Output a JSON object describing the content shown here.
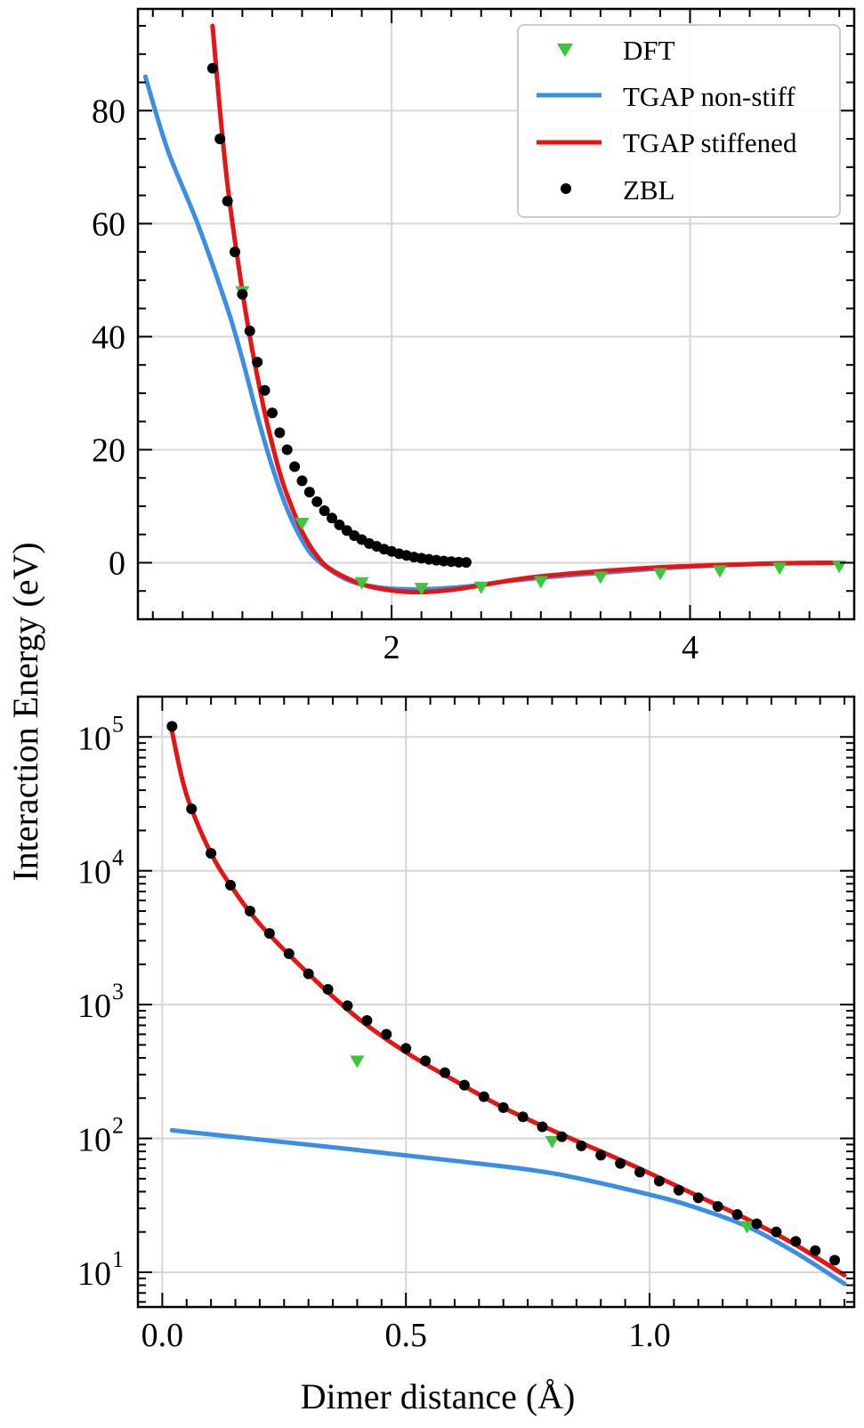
{
  "figure": {
    "ylabel": "Interaction Energy (eV)",
    "xlabel": "Dimer distance (Å)"
  },
  "colors": {
    "dft": "#3cc63c",
    "tgap_non_stiff": "#3b8ee6",
    "tgap_stiffened": "#e81414",
    "zbl": "#000000",
    "grid": "#d6d6d6"
  },
  "legend": {
    "placement": "top-right of top panel",
    "entries": [
      "DFT",
      "TGAP non-stiff",
      "TGAP stiffened",
      "ZBL"
    ]
  },
  "chart_data": [
    {
      "type": "line",
      "panel": "top",
      "xlim": [
        0.3,
        5.1
      ],
      "ylim": [
        -10,
        98
      ],
      "yscale": "linear",
      "grid": true,
      "x_ticks": [
        2,
        4
      ],
      "x_tick_labels": [
        "2",
        "4"
      ],
      "y_ticks": [
        0,
        20,
        40,
        60,
        80
      ],
      "y_tick_labels": [
        "0",
        "20",
        "40",
        "60",
        "80"
      ],
      "series": [
        {
          "name": "DFT",
          "style": "triangle-down-markers",
          "x": [
            1.0,
            1.4,
            1.8,
            2.2,
            2.6,
            3.0,
            3.4,
            3.8,
            4.2,
            4.6,
            5.0
          ],
          "y": [
            48,
            7,
            -3.5,
            -4.5,
            -4.3,
            -3.3,
            -2.5,
            -1.9,
            -1.4,
            -0.9,
            -0.6
          ]
        },
        {
          "name": "TGAP non-stiff",
          "style": "line",
          "x": [
            0.35,
            0.5,
            0.7,
            0.9,
            1.0,
            1.1,
            1.2,
            1.3,
            1.4,
            1.5,
            1.7,
            1.9,
            2.1,
            2.3,
            2.5,
            2.8,
            3.2,
            3.6,
            4.0,
            4.5,
            5.0
          ],
          "y": [
            86,
            73,
            60,
            45,
            36,
            26,
            17,
            9.5,
            4,
            0.5,
            -3,
            -4.3,
            -4.7,
            -4.6,
            -4.2,
            -3.2,
            -2.2,
            -1.4,
            -0.7,
            -0.2,
            0
          ]
        },
        {
          "name": "TGAP stiffened",
          "style": "line",
          "x": [
            0.8,
            0.85,
            0.9,
            0.95,
            1.0,
            1.05,
            1.1,
            1.15,
            1.2,
            1.25,
            1.3,
            1.4,
            1.5,
            1.6,
            1.8,
            2.0,
            2.2,
            2.4,
            2.6,
            2.8,
            3.0,
            3.4,
            3.8,
            4.2,
            4.6,
            5.0
          ],
          "y": [
            95,
            80,
            67,
            57,
            48,
            40,
            33,
            26.5,
            21,
            16,
            12,
            5.5,
            1.2,
            -1.3,
            -3.8,
            -4.9,
            -5.2,
            -4.8,
            -4.0,
            -3.1,
            -2.4,
            -1.5,
            -0.8,
            -0.4,
            -0.1,
            0
          ]
        },
        {
          "name": "ZBL",
          "style": "dot-markers",
          "x": [
            0.8,
            0.85,
            0.9,
            0.95,
            1.0,
            1.05,
            1.1,
            1.15,
            1.2,
            1.25,
            1.3,
            1.35,
            1.4,
            1.45,
            1.5,
            1.55,
            1.6,
            1.65,
            1.7,
            1.75,
            1.8,
            1.85,
            1.9,
            1.95,
            2.0,
            2.05,
            2.1,
            2.15,
            2.2,
            2.25,
            2.3,
            2.35,
            2.4,
            2.45,
            2.5
          ],
          "y": [
            87.5,
            75,
            64,
            55,
            47.5,
            41,
            35.5,
            30.5,
            26.5,
            23,
            20,
            17,
            14.5,
            12.5,
            10.8,
            9.2,
            7.9,
            6.7,
            5.7,
            4.8,
            4.1,
            3.4,
            2.9,
            2.4,
            2.0,
            1.6,
            1.3,
            1.0,
            0.8,
            0.6,
            0.45,
            0.3,
            0.2,
            0.1,
            0.05
          ]
        }
      ]
    },
    {
      "type": "line",
      "panel": "bottom",
      "xlim": [
        -0.05,
        1.42
      ],
      "ylim": [
        5.5,
        200000
      ],
      "yscale": "log",
      "grid": true,
      "x_ticks": [
        0.0,
        0.5,
        1.0
      ],
      "x_tick_labels": [
        "0.0",
        "0.5",
        "1.0"
      ],
      "y_ticks": [
        10,
        100,
        1000,
        10000,
        100000
      ],
      "y_tick_labels": [
        {
          "base": "10",
          "exp": "1"
        },
        {
          "base": "10",
          "exp": "2"
        },
        {
          "base": "10",
          "exp": "3"
        },
        {
          "base": "10",
          "exp": "4"
        },
        {
          "base": "10",
          "exp": "5"
        }
      ],
      "series": [
        {
          "name": "DFT",
          "style": "triangle-down-markers",
          "x": [
            0.4,
            0.8,
            1.2
          ],
          "y": [
            380,
            95,
            22
          ]
        },
        {
          "name": "TGAP non-stiff",
          "style": "line",
          "x": [
            0.02,
            0.2,
            0.4,
            0.6,
            0.8,
            1.0,
            1.1,
            1.2,
            1.3,
            1.4
          ],
          "y": [
            115,
            98,
            82,
            68,
            55,
            38,
            30,
            22,
            14,
            8.2
          ]
        },
        {
          "name": "TGAP stiffened",
          "style": "line",
          "x": [
            0.02,
            0.04,
            0.06,
            0.1,
            0.14,
            0.2,
            0.3,
            0.4,
            0.5,
            0.6,
            0.7,
            0.8,
            0.9,
            1.0,
            1.1,
            1.2,
            1.3,
            1.4
          ],
          "y": [
            110000,
            50000,
            29000,
            13500,
            7800,
            4000,
            1700,
            800,
            440,
            270,
            170,
            115,
            80,
            55,
            37,
            25,
            16,
            9.5
          ]
        },
        {
          "name": "ZBL",
          "style": "dot-markers",
          "x": [
            0.02,
            0.06,
            0.1,
            0.14,
            0.18,
            0.22,
            0.26,
            0.3,
            0.34,
            0.38,
            0.42,
            0.46,
            0.5,
            0.54,
            0.58,
            0.62,
            0.66,
            0.7,
            0.74,
            0.78,
            0.82,
            0.86,
            0.9,
            0.94,
            0.98,
            1.02,
            1.06,
            1.1,
            1.14,
            1.18,
            1.22,
            1.26,
            1.3,
            1.34,
            1.38
          ],
          "y": [
            120000,
            29000,
            13500,
            7800,
            5000,
            3400,
            2400,
            1700,
            1300,
            980,
            760,
            600,
            470,
            380,
            310,
            250,
            205,
            170,
            145,
            122,
            103,
            88,
            75,
            65,
            56,
            48,
            41,
            36,
            31,
            27,
            23,
            20,
            17,
            14.5,
            12.3
          ]
        }
      ]
    }
  ]
}
